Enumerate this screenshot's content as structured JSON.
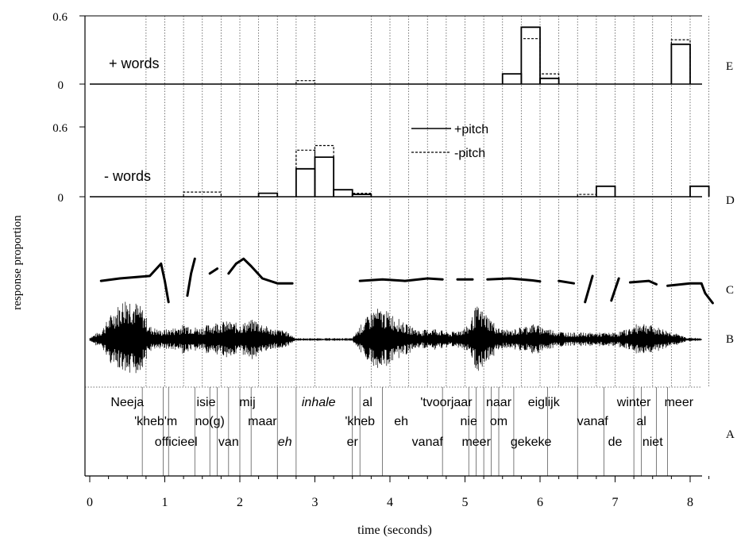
{
  "chart_data": {
    "type": "step",
    "xlabel": "time (seconds)",
    "ylabel": "response proportion",
    "xlim": [
      0,
      8.3
    ],
    "xticks": [
      "0",
      "1",
      "2",
      "3",
      "4",
      "5",
      "6",
      "7",
      "8"
    ],
    "panels": [
      {
        "id": "E",
        "label": "E",
        "title": "+ words",
        "ytick_labels": [
          "0.6",
          "0"
        ],
        "ylim": [
          0,
          0.6
        ],
        "series": [
          {
            "name": "+pitch",
            "style": "solid",
            "bins": [
              {
                "x0": 5.5,
                "x1": 5.75,
                "y": 0.09
              },
              {
                "x0": 5.75,
                "x1": 6.0,
                "y": 0.5
              },
              {
                "x0": 6.0,
                "x1": 6.25,
                "y": 0.05
              },
              {
                "x0": 7.75,
                "x1": 8.0,
                "y": 0.35
              }
            ]
          },
          {
            "name": "-pitch",
            "style": "dashed",
            "bins": [
              {
                "x0": 2.75,
                "x1": 3.0,
                "y": 0.03
              },
              {
                "x0": 5.75,
                "x1": 6.0,
                "y": 0.4
              },
              {
                "x0": 6.0,
                "x1": 6.25,
                "y": 0.09
              },
              {
                "x0": 7.75,
                "x1": 8.0,
                "y": 0.39
              }
            ]
          }
        ]
      },
      {
        "id": "D",
        "label": "D",
        "title": "- words",
        "ytick_labels": [
          "0.6",
          "0"
        ],
        "ylim": [
          0,
          0.6
        ],
        "series": [
          {
            "name": "+pitch",
            "style": "solid",
            "bins": [
              {
                "x0": 2.25,
                "x1": 2.5,
                "y": 0.03
              },
              {
                "x0": 2.75,
                "x1": 3.0,
                "y": 0.24
              },
              {
                "x0": 3.0,
                "x1": 3.25,
                "y": 0.34
              },
              {
                "x0": 3.25,
                "x1": 3.5,
                "y": 0.06
              },
              {
                "x0": 3.5,
                "x1": 3.75,
                "y": 0.02
              },
              {
                "x0": 6.75,
                "x1": 7.0,
                "y": 0.09
              },
              {
                "x0": 8.0,
                "x1": 8.25,
                "y": 0.09
              }
            ]
          },
          {
            "name": "-pitch",
            "style": "dashed",
            "bins": [
              {
                "x0": 1.25,
                "x1": 1.75,
                "y": 0.04
              },
              {
                "x0": 2.25,
                "x1": 2.5,
                "y": 0.03
              },
              {
                "x0": 2.75,
                "x1": 3.0,
                "y": 0.4
              },
              {
                "x0": 3.0,
                "x1": 3.25,
                "y": 0.44
              },
              {
                "x0": 3.5,
                "x1": 3.75,
                "y": 0.03
              },
              {
                "x0": 6.5,
                "x1": 6.75,
                "y": 0.02
              }
            ]
          }
        ]
      }
    ],
    "legend": {
      "placement": "inside panel D, upper center",
      "entries": [
        {
          "name": "+pitch",
          "style": "solid"
        },
        {
          "name": "-pitch",
          "style": "dashed"
        }
      ]
    },
    "pitch_panel": {
      "label": "C",
      "segments": [
        [
          [
            0.15,
            0.45
          ],
          [
            0.4,
            0.5
          ],
          [
            0.8,
            0.55
          ],
          [
            0.95,
            0.8
          ],
          [
            1.0,
            0.45
          ],
          [
            1.05,
            0.02
          ]
        ],
        [
          [
            1.3,
            0.15
          ],
          [
            1.35,
            0.6
          ],
          [
            1.4,
            0.9
          ]
        ],
        [
          [
            1.6,
            0.6
          ],
          [
            1.7,
            0.7
          ]
        ],
        [
          [
            1.85,
            0.6
          ],
          [
            1.95,
            0.8
          ],
          [
            2.05,
            0.9
          ],
          [
            2.15,
            0.75
          ],
          [
            2.3,
            0.5
          ],
          [
            2.5,
            0.4
          ],
          [
            2.7,
            0.4
          ]
        ],
        [
          [
            3.6,
            0.45
          ],
          [
            3.9,
            0.48
          ],
          [
            4.2,
            0.45
          ],
          [
            4.5,
            0.5
          ],
          [
            4.7,
            0.48
          ]
        ],
        [
          [
            4.9,
            0.48
          ],
          [
            5.1,
            0.48
          ]
        ],
        [
          [
            5.3,
            0.48
          ],
          [
            5.6,
            0.5
          ],
          [
            5.9,
            0.46
          ],
          [
            6.0,
            0.44
          ]
        ],
        [
          [
            6.25,
            0.45
          ],
          [
            6.45,
            0.4
          ]
        ],
        [
          [
            6.6,
            0.02
          ],
          [
            6.7,
            0.55
          ]
        ],
        [
          [
            6.95,
            0.05
          ],
          [
            7.05,
            0.5
          ]
        ],
        [
          [
            7.2,
            0.42
          ],
          [
            7.45,
            0.45
          ],
          [
            7.55,
            0.38
          ]
        ],
        [
          [
            7.7,
            0.35
          ],
          [
            8.0,
            0.4
          ],
          [
            8.15,
            0.4
          ],
          [
            8.2,
            0.2
          ],
          [
            8.3,
            0.0
          ]
        ]
      ]
    },
    "waveform_panel": {
      "label": "B",
      "envelope": [
        [
          0.0,
          0.05
        ],
        [
          0.15,
          0.2
        ],
        [
          0.3,
          0.6
        ],
        [
          0.5,
          1.0
        ],
        [
          0.7,
          0.7
        ],
        [
          0.8,
          0.3
        ],
        [
          0.95,
          0.2
        ],
        [
          1.1,
          0.25
        ],
        [
          1.3,
          0.35
        ],
        [
          1.45,
          0.25
        ],
        [
          1.7,
          0.4
        ],
        [
          1.85,
          0.4
        ],
        [
          2.0,
          0.35
        ],
        [
          2.2,
          0.45
        ],
        [
          2.4,
          0.25
        ],
        [
          2.6,
          0.2
        ],
        [
          2.75,
          0.03
        ],
        [
          3.5,
          0.03
        ],
        [
          3.6,
          0.3
        ],
        [
          3.8,
          0.7
        ],
        [
          4.0,
          0.6
        ],
        [
          4.2,
          0.35
        ],
        [
          4.4,
          0.2
        ],
        [
          4.6,
          0.25
        ],
        [
          4.8,
          0.15
        ],
        [
          5.05,
          0.3
        ],
        [
          5.15,
          0.75
        ],
        [
          5.3,
          0.55
        ],
        [
          5.45,
          0.25
        ],
        [
          5.6,
          0.2
        ],
        [
          5.9,
          0.35
        ],
        [
          6.2,
          0.2
        ],
        [
          6.4,
          0.15
        ],
        [
          6.7,
          0.15
        ],
        [
          7.0,
          0.15
        ],
        [
          7.2,
          0.25
        ],
        [
          7.35,
          0.4
        ],
        [
          7.5,
          0.3
        ],
        [
          7.7,
          0.2
        ],
        [
          7.95,
          0.05
        ],
        [
          8.3,
          0.01
        ]
      ]
    },
    "transcription_panel": {
      "label": "A",
      "boundaries": [
        0.7,
        0.98,
        1.05,
        1.4,
        1.6,
        1.7,
        1.85,
        2.0,
        2.15,
        2.5,
        2.75,
        3.5,
        3.6,
        3.9,
        4.7,
        5.05,
        5.15,
        5.25,
        5.35,
        5.45,
        5.65,
        6.1,
        6.5,
        6.85,
        7.25,
        7.35,
        7.55,
        7.7
      ]
    }
  },
  "words": [
    {
      "text": "Neeja",
      "t": 0.5,
      "row": 1,
      "italic": false
    },
    {
      "text": "'kheb'm",
      "t": 0.88,
      "row": 2,
      "italic": false
    },
    {
      "text": "officieel",
      "t": 1.15,
      "row": 3,
      "italic": false
    },
    {
      "text": "isie",
      "t": 1.55,
      "row": 1,
      "italic": false
    },
    {
      "text": "no(g)",
      "t": 1.6,
      "row": 2,
      "italic": false
    },
    {
      "text": "van",
      "t": 1.85,
      "row": 3,
      "italic": false
    },
    {
      "text": "mij",
      "t": 2.1,
      "row": 1,
      "italic": false
    },
    {
      "text": "maar",
      "t": 2.3,
      "row": 2,
      "italic": false
    },
    {
      "text": "eh",
      "t": 2.6,
      "row": 3,
      "italic": true
    },
    {
      "text": "inhale",
      "t": 3.05,
      "row": 1,
      "italic": true
    },
    {
      "text": "'kheb",
      "t": 3.6,
      "row": 2,
      "italic": false
    },
    {
      "text": "er",
      "t": 3.5,
      "row": 3,
      "italic": false
    },
    {
      "text": "al",
      "t": 3.7,
      "row": 1,
      "italic": false
    },
    {
      "text": "eh",
      "t": 4.15,
      "row": 2,
      "italic": false
    },
    {
      "text": "vanaf",
      "t": 4.5,
      "row": 3,
      "italic": false
    },
    {
      "text": "'tvoorjaar",
      "t": 4.75,
      "row": 1,
      "italic": false
    },
    {
      "text": "nie",
      "t": 5.05,
      "row": 2,
      "italic": false
    },
    {
      "text": "meer",
      "t": 5.15,
      "row": 3,
      "italic": false
    },
    {
      "text": "naar",
      "t": 5.45,
      "row": 1,
      "italic": false
    },
    {
      "text": "om",
      "t": 5.45,
      "row": 2,
      "italic": false
    },
    {
      "text": "gekeke",
      "t": 5.88,
      "row": 3,
      "italic": false
    },
    {
      "text": "eiglijk",
      "t": 6.05,
      "row": 1,
      "italic": false
    },
    {
      "text": "vanaf",
      "t": 6.7,
      "row": 2,
      "italic": false
    },
    {
      "text": "de",
      "t": 7.0,
      "row": 3,
      "italic": false
    },
    {
      "text": "winter",
      "t": 7.25,
      "row": 1,
      "italic": false
    },
    {
      "text": "al",
      "t": 7.35,
      "row": 2,
      "italic": false
    },
    {
      "text": "niet",
      "t": 7.5,
      "row": 3,
      "italic": false
    },
    {
      "text": "meer",
      "t": 7.85,
      "row": 1,
      "italic": false
    }
  ],
  "panel_labels": [
    "E",
    "D",
    "C",
    "B",
    "A"
  ]
}
